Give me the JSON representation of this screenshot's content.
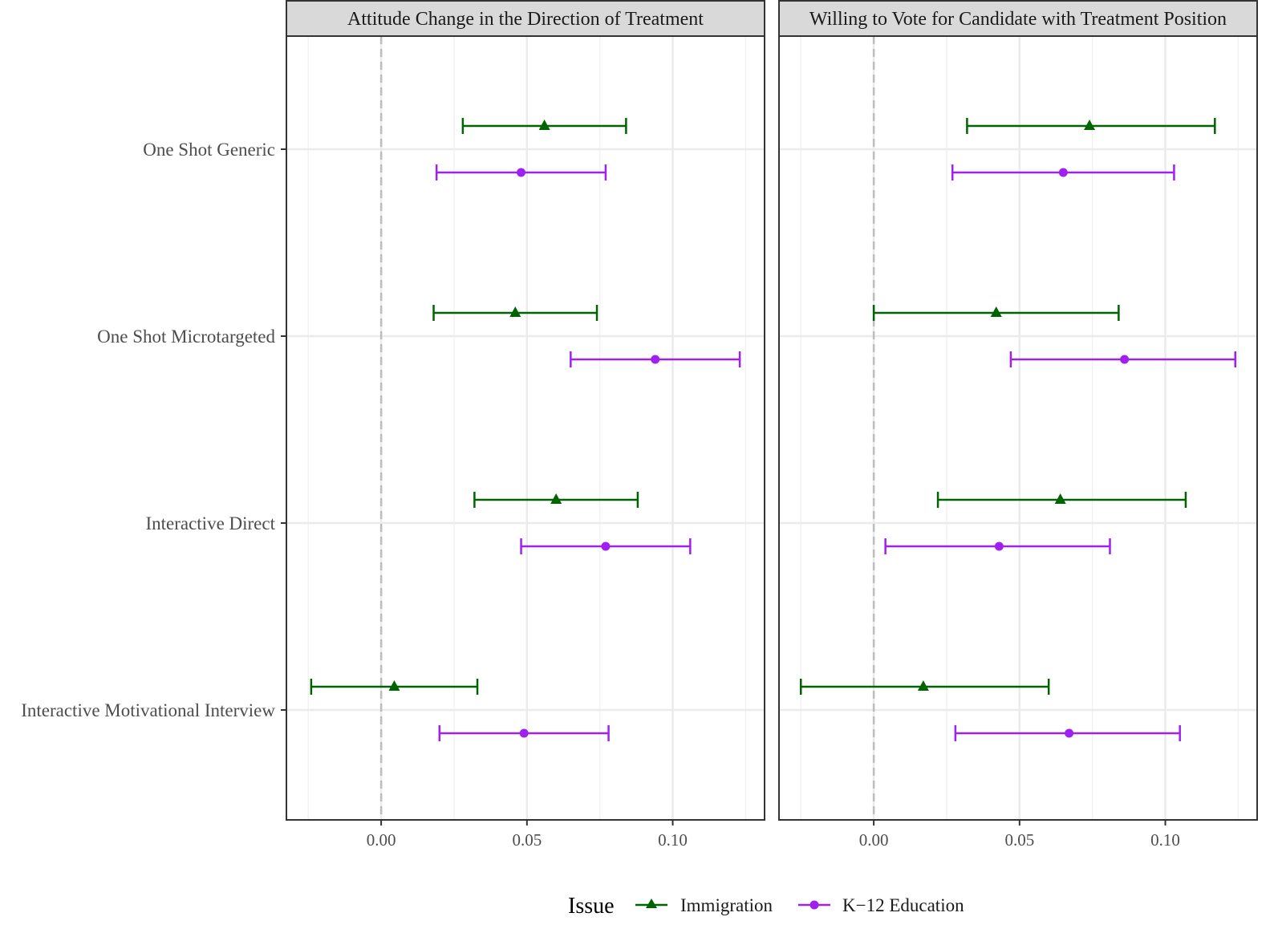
{
  "chart_data": {
    "type": "errorbar",
    "panels": [
      {
        "title": "Attitude Change in the Direction of Treatment",
        "xlim": [
          -0.0325,
          0.1315
        ],
        "xticks": [
          0.0,
          0.05,
          0.1
        ],
        "xtick_labels": [
          "0.00",
          "0.05",
          "0.10"
        ],
        "series": [
          {
            "name": "Immigration",
            "estimates": [
              0.056,
              0.046,
              0.06,
              0.0045
            ],
            "lower": [
              0.028,
              0.018,
              0.032,
              -0.024
            ],
            "upper": [
              0.084,
              0.074,
              0.088,
              0.033
            ]
          },
          {
            "name": "K−12 Education",
            "estimates": [
              0.048,
              0.094,
              0.077,
              0.049
            ],
            "lower": [
              0.019,
              0.065,
              0.048,
              0.02
            ],
            "upper": [
              0.077,
              0.123,
              0.106,
              0.078
            ]
          }
        ]
      },
      {
        "title": "Willing to Vote for Candidate with Treatment Position",
        "xlim": [
          -0.0325,
          0.1315
        ],
        "xticks": [
          0.0,
          0.05,
          0.1
        ],
        "xtick_labels": [
          "0.00",
          "0.05",
          "0.10"
        ],
        "series": [
          {
            "name": "Immigration",
            "estimates": [
              0.074,
              0.042,
              0.064,
              0.017
            ],
            "lower": [
              0.032,
              0.0,
              0.022,
              -0.025
            ],
            "upper": [
              0.117,
              0.084,
              0.107,
              0.06
            ]
          },
          {
            "name": "K−12 Education",
            "estimates": [
              0.065,
              0.086,
              0.043,
              0.067
            ],
            "lower": [
              0.027,
              0.047,
              0.004,
              0.028
            ],
            "upper": [
              0.103,
              0.124,
              0.081,
              0.105
            ]
          }
        ]
      }
    ],
    "categories": [
      "One Shot Generic",
      "One Shot Microtargeted",
      "Interactive Direct",
      "Interactive Motivational Interview"
    ],
    "reference_line": 0,
    "legend": {
      "title": "Issue",
      "position": "bottom",
      "items": [
        {
          "name": "Immigration",
          "color": "#006400",
          "marker": "triangle"
        },
        {
          "name": "K−12 Education",
          "color": "#A020F0",
          "marker": "circle"
        }
      ]
    }
  }
}
